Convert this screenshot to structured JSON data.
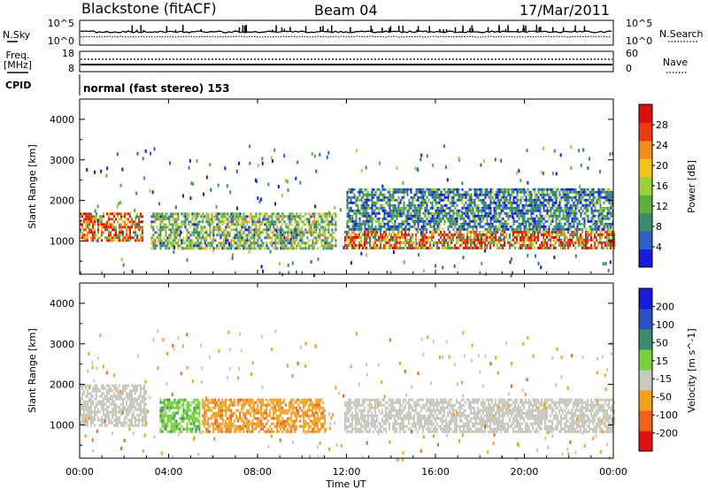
{
  "header": {
    "station": "Blackstone (fitACF)",
    "beam": "Beam 04",
    "date": "17/Mar/2011"
  },
  "noise_panel": {
    "left_label": "N.Sky",
    "right_label": "N.Search",
    "left_ticks": [
      "10^5",
      "10^0"
    ],
    "right_ticks": [
      "10^5",
      "10^0"
    ]
  },
  "freq_panel": {
    "left_label_1": "Freq.",
    "left_label_2": "[MHz]",
    "left_ticks": [
      "18",
      "8"
    ],
    "right_label": "Nave",
    "right_ticks": [
      "60",
      "0"
    ]
  },
  "cpid_panel": {
    "label": "CPID",
    "text": "normal (fast stereo) 153"
  },
  "colors": {
    "power_scale": [
      "#1a1adb",
      "#2d5fc7",
      "#3a8c6a",
      "#5fae3e",
      "#9bd23a",
      "#f2c21a",
      "#f28c1a",
      "#ee3a12",
      "#dd1010"
    ],
    "velocity_scale": [
      "#1a1adb",
      "#2d4fc7",
      "#3a8c6a",
      "#78d23a",
      "#c8c8be",
      "#f2a01a",
      "#f2601a",
      "#e01010"
    ],
    "ground_scatter": "#c8c8be"
  },
  "chart_data": [
    {
      "type": "heatmap",
      "name": "power",
      "ylabel": "Slant Range [km]",
      "colorbar_label": "Power [dB]",
      "colorbar_ticks": [
        "28",
        "24",
        "20",
        "16",
        "12",
        "8",
        "4"
      ],
      "yticks": [
        "4000",
        "3000",
        "2000",
        "1000"
      ],
      "ylim": [
        180,
        4500
      ],
      "xlim": [
        0,
        24
      ],
      "x_unit": "hours UT",
      "features": [
        {
          "t0": 0.0,
          "t1": 2.8,
          "r0": 1000,
          "r1": 1700,
          "level": "high"
        },
        {
          "t0": 3.2,
          "t1": 11.5,
          "r0": 800,
          "r1": 1700,
          "level": "medium"
        },
        {
          "t0": 11.9,
          "t1": 24.0,
          "r0": 850,
          "r1": 1250,
          "level": "high"
        },
        {
          "t0": 12.0,
          "t1": 24.0,
          "r0": 1300,
          "r1": 2300,
          "level": "low"
        }
      ]
    },
    {
      "type": "heatmap",
      "name": "velocity",
      "ylabel": "Slant Range [km]",
      "colorbar_label": "Velocity [m s^-1]",
      "colorbar_ticks": [
        "200",
        "100",
        "50",
        "15",
        "-15",
        "-50",
        "-100",
        "-200"
      ],
      "yticks": [
        "4000",
        "3000",
        "2000",
        "1000"
      ],
      "ylim": [
        180,
        4500
      ],
      "xlim": [
        0,
        24
      ],
      "x_unit": "hours UT",
      "features": [
        {
          "t0": 0.0,
          "t1": 3.0,
          "r0": 1000,
          "r1": 2000,
          "level": "ground"
        },
        {
          "t0": 3.6,
          "t1": 5.4,
          "r0": 850,
          "r1": 1650,
          "level": "positive"
        },
        {
          "t0": 5.5,
          "t1": 11.0,
          "r0": 800,
          "r1": 1650,
          "level": "negative"
        },
        {
          "t0": 11.9,
          "t1": 24.0,
          "r0": 850,
          "r1": 1650,
          "level": "ground"
        }
      ]
    }
  ],
  "xaxis": {
    "label": "Time UT",
    "ticks": [
      "00:00",
      "04:00",
      "08:00",
      "12:00",
      "16:00",
      "20:00",
      "00:00"
    ]
  }
}
